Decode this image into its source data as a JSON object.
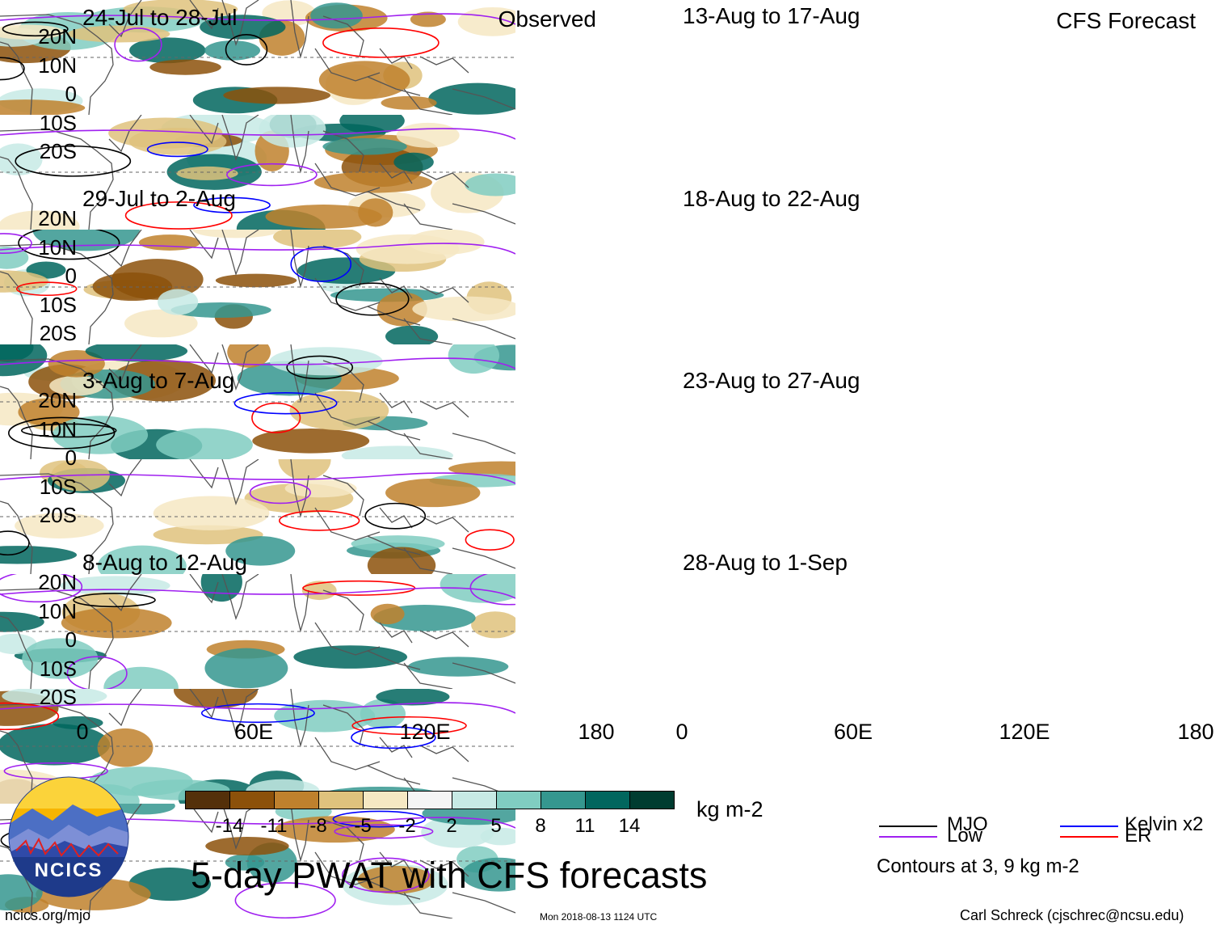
{
  "panels": [
    {
      "title": "24-Jul to 28-Jul",
      "tag": "Observed"
    },
    {
      "title": "29-Jul to 2-Aug",
      "tag": ""
    },
    {
      "title": "3-Aug to 7-Aug",
      "tag": ""
    },
    {
      "title": "8-Aug to 12-Aug",
      "tag": ""
    },
    {
      "title": "13-Aug to 17-Aug",
      "tag": "CFS Forecast"
    },
    {
      "title": "18-Aug to 22-Aug",
      "tag": ""
    },
    {
      "title": "23-Aug to 27-Aug",
      "tag": ""
    },
    {
      "title": "28-Aug to 1-Sep",
      "tag": ""
    }
  ],
  "lat_labels": [
    "20N",
    "10N",
    "0",
    "10S",
    "20S"
  ],
  "lon_labels": [
    "0",
    "60E",
    "120E",
    "180"
  ],
  "colorbar": {
    "colors": [
      "#54300a",
      "#8c510a",
      "#bf812d",
      "#dfc27d",
      "#f6e8c3",
      "#f5f5f5",
      "#c7eae5",
      "#80cdc1",
      "#35978f",
      "#01665e",
      "#003c30"
    ],
    "labels": [
      "-14",
      "-11",
      "-8",
      "-5",
      "-2",
      "2",
      "5",
      "8",
      "11",
      "14"
    ],
    "units": "kg m-2"
  },
  "main_title": "5-day PWAT with CFS forecasts",
  "legend": {
    "items": [
      {
        "label": "MJO",
        "color": "#000000"
      },
      {
        "label": "Kelvin x2",
        "color": "#0000ff"
      },
      {
        "label": "Low",
        "color": "#a020f0"
      },
      {
        "label": "ER",
        "color": "#ff0000"
      }
    ],
    "note": "Contours at 3, 9 kg m-2"
  },
  "logo_text": "NCICS",
  "footer": {
    "left": "ncics.org/mjo",
    "center": "Mon 2018-08-13 1124 UTC",
    "right": "Carl Schreck (cjschrec@ncsu.edu)"
  },
  "map_colors": {
    "brown_dark": "#8c510a",
    "brown": "#bf812d",
    "tan": "#dfc27d",
    "tan_light": "#f6e8c3",
    "teal_light": "#c7eae5",
    "teal": "#80cdc1",
    "teal_dark": "#35978f",
    "teal_darker": "#01665e"
  }
}
